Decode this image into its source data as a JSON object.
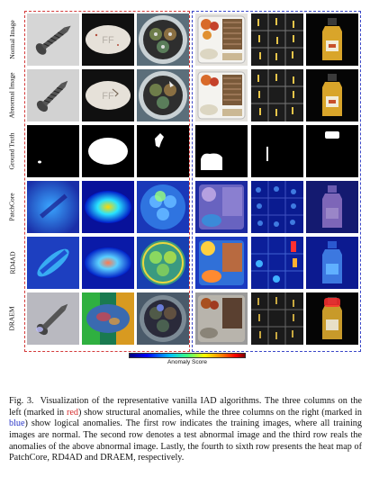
{
  "figure": {
    "row_labels": [
      "Normal Image",
      "Abnormal Image",
      "Ground Truth",
      "PatchCore",
      "RD4AD",
      "DRAEM"
    ],
    "colorbar_label": "Anomaly Score",
    "colors": {
      "structural_frame": "#d43a3a",
      "logical_frame": "#3b47c8"
    }
  },
  "caption": {
    "label": "Fig. 3.",
    "part1": "Visualization of the representative vanilla IAD algorithms. The three columns on the left (marked in ",
    "red_word": "red",
    "part2": ") show structural anomalies, while the three columns on the right (marked in ",
    "blue_word": "blue",
    "part3": ") show logical anomalies. The first row indicates the training images, where all training images are normal. The second row denotes a test abnormal image and the third row reals the anomalies of the above abnormal image. Lastly, the fourth to sixth row presents the heat map of PatchCore, RD4AD and DRAEM, respectively."
  }
}
